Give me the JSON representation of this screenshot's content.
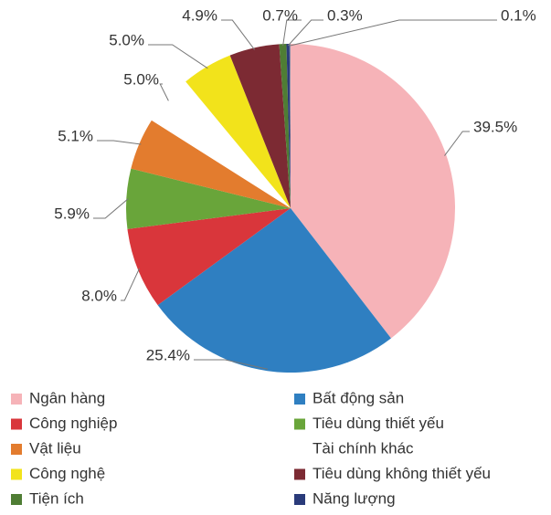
{
  "chart_data": {
    "type": "pie",
    "categories": [
      "Ngân hàng",
      "Bất động sản",
      "Công nghiệp",
      "Tiêu dùng thiết yếu",
      "Vật liệu",
      "Tài chính khác",
      "Công nghệ",
      "Tiêu dùng không thiết yếu",
      "Tiện ích",
      "Năng lượng",
      null
    ],
    "values": [
      39.5,
      25.4,
      8.0,
      5.9,
      5.1,
      5.0,
      5.0,
      4.9,
      0.7,
      0.3,
      0.1
    ],
    "value_labels": [
      "39.5%",
      "25.4%",
      "8.0%",
      "5.9%",
      "5.1%",
      "5.0%",
      "5.0%",
      "4.9%",
      "0.7%",
      "0.3%",
      "0.1%"
    ],
    "colors": [
      "#f6b3b8",
      "#2f7fc1",
      "#d9363b",
      "#69a53a",
      "#e37c2e",
      "#ffffff",
      "#f2e31b",
      "#7c2a33",
      "#4f7d34",
      "#2a3b7a",
      "#8a8fa8"
    ]
  }
}
